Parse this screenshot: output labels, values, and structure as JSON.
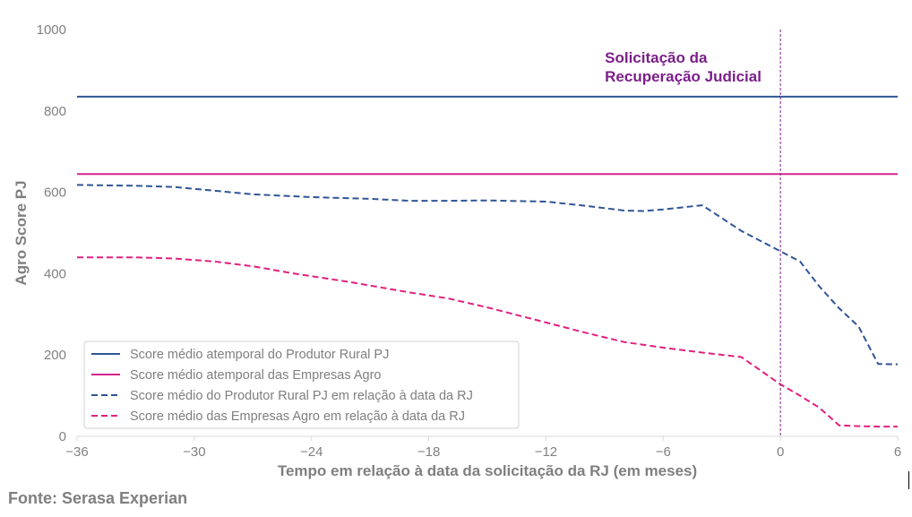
{
  "chart_data": {
    "type": "line",
    "xlabel": "Tempo em relação à data da solicitação da RJ (em meses)",
    "ylabel": "Agro Score PJ",
    "xlim": [
      -36,
      6
    ],
    "ylim": [
      0,
      1000
    ],
    "xticks": [
      -36,
      -30,
      -24,
      -18,
      -12,
      -6,
      0,
      6
    ],
    "xtick_labels": [
      "−36",
      "−30",
      "−24",
      "−18",
      "−12",
      "−6",
      "0",
      "6"
    ],
    "yticks": [
      0,
      200,
      400,
      600,
      800,
      1000
    ],
    "ytick_labels": [
      "0",
      "200",
      "400",
      "600",
      "800",
      "1000"
    ],
    "grid": false,
    "legend_position": "bottom-left",
    "annotation": {
      "x": 0,
      "lines": [
        "Solicitação da",
        "Recuperação Judicial"
      ],
      "color": "#7b1f8a"
    },
    "series": [
      {
        "name": "Score médio atemporal do Produtor Rural PJ",
        "style": "solid",
        "color": "#2f5597",
        "x": [
          -36,
          6
        ],
        "y": [
          835,
          835
        ]
      },
      {
        "name": "Score médio atemporal das Empresas Agro",
        "style": "solid",
        "color": "#d6248a",
        "x": [
          -36,
          6
        ],
        "y": [
          645,
          645
        ]
      },
      {
        "name": "Score médio do Produtor Rural PJ em relação à data da RJ",
        "style": "dashed",
        "color": "#2f5597",
        "x": [
          -36,
          -33,
          -31,
          -29,
          -27,
          -24,
          -21,
          -19,
          -17,
          -15,
          -12,
          -10,
          -8,
          -7,
          -6,
          -4,
          -2,
          0,
          1,
          2,
          3,
          4,
          5,
          6
        ],
        "y": [
          618,
          616,
          613,
          604,
          595,
          588,
          584,
          579,
          579,
          580,
          577,
          567,
          555,
          554,
          558,
          568,
          505,
          455,
          430,
          368,
          315,
          270,
          178,
          177
        ]
      },
      {
        "name": "Score médio das Empresas Agro em relação à data da RJ",
        "style": "dashed",
        "color": "#e0207f",
        "x": [
          -36,
          -33,
          -31,
          -29,
          -27,
          -25,
          -22,
          -19,
          -17,
          -15,
          -12,
          -10,
          -8,
          -6,
          -4,
          -2,
          0,
          1,
          2,
          3,
          4,
          5,
          6
        ],
        "y": [
          440,
          440,
          437,
          430,
          418,
          401,
          379,
          354,
          339,
          317,
          280,
          255,
          232,
          218,
          206,
          195,
          128,
          100,
          70,
          27,
          25,
          24,
          24
        ]
      }
    ]
  },
  "source": "Fonte: Serasa Experian"
}
